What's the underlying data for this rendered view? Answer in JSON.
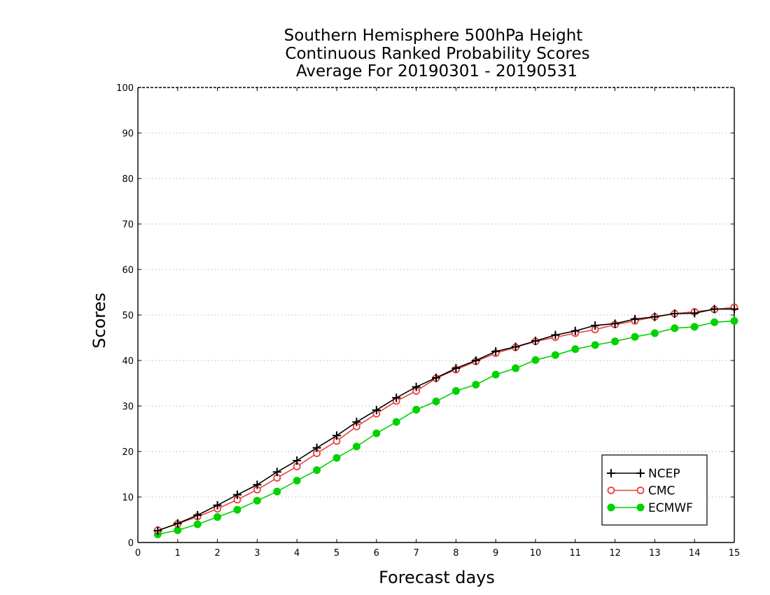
{
  "chart_data": {
    "type": "line",
    "title": [
      "Southern Hemisphere 500hPa Height",
      "Continuous Ranked Probability Scores",
      "Average For 20190301 - 20190531"
    ],
    "xlabel": "Forecast days",
    "ylabel": "Scores",
    "xlim": [
      0,
      15
    ],
    "ylim": [
      0,
      100
    ],
    "xticks": [
      "0",
      "1",
      "2",
      "3",
      "4",
      "5",
      "6",
      "7",
      "8",
      "9",
      "10",
      "11",
      "12",
      "13",
      "14",
      "15"
    ],
    "yticks": [
      "0",
      "10",
      "20",
      "30",
      "40",
      "50",
      "60",
      "70",
      "80",
      "90",
      "100"
    ],
    "grid": "horizontal dotted",
    "legend_position": "bottom-right",
    "x": [
      0.5,
      1,
      1.5,
      2,
      2.5,
      3,
      3.5,
      4,
      4.5,
      5,
      5.5,
      6,
      6.5,
      7,
      7.5,
      8,
      8.5,
      9,
      9.5,
      10,
      10.5,
      11,
      11.5,
      12,
      12.5,
      13,
      13.5,
      14,
      14.5,
      15
    ],
    "series": [
      {
        "name": "NCEP",
        "color": "#000000",
        "marker": "plus",
        "values": [
          2.6,
          4.2,
          6.0,
          8.2,
          10.5,
          12.7,
          15.5,
          18.0,
          20.8,
          23.5,
          26.5,
          29.1,
          31.8,
          34.2,
          36.2,
          38.3,
          40.0,
          42.0,
          43.0,
          44.3,
          45.6,
          46.5,
          47.7,
          48.1,
          49.1,
          49.6,
          50.3,
          50.4,
          51.3,
          51.3
        ]
      },
      {
        "name": "CMC",
        "color": "#e8403c",
        "marker": "open-circle",
        "values": [
          2.7,
          4.1,
          5.7,
          7.4,
          9.4,
          11.6,
          14.2,
          16.7,
          19.6,
          22.3,
          25.5,
          28.3,
          31.1,
          33.3,
          36.1,
          38.0,
          39.8,
          41.6,
          42.9,
          44.2,
          45.1,
          46.0,
          46.8,
          47.9,
          48.7,
          49.6,
          50.3,
          50.7,
          51.2,
          51.7
        ]
      },
      {
        "name": "ECMWF",
        "color": "#00d200",
        "marker": "filled-circle",
        "values": [
          1.8,
          2.7,
          4.0,
          5.6,
          7.2,
          9.2,
          11.2,
          13.6,
          15.9,
          18.6,
          21.1,
          24.0,
          26.5,
          29.2,
          31.0,
          33.3,
          34.7,
          36.9,
          38.3,
          40.1,
          41.2,
          42.5,
          43.4,
          44.2,
          45.2,
          46.0,
          47.1,
          47.4,
          48.4,
          48.7
        ]
      }
    ]
  }
}
